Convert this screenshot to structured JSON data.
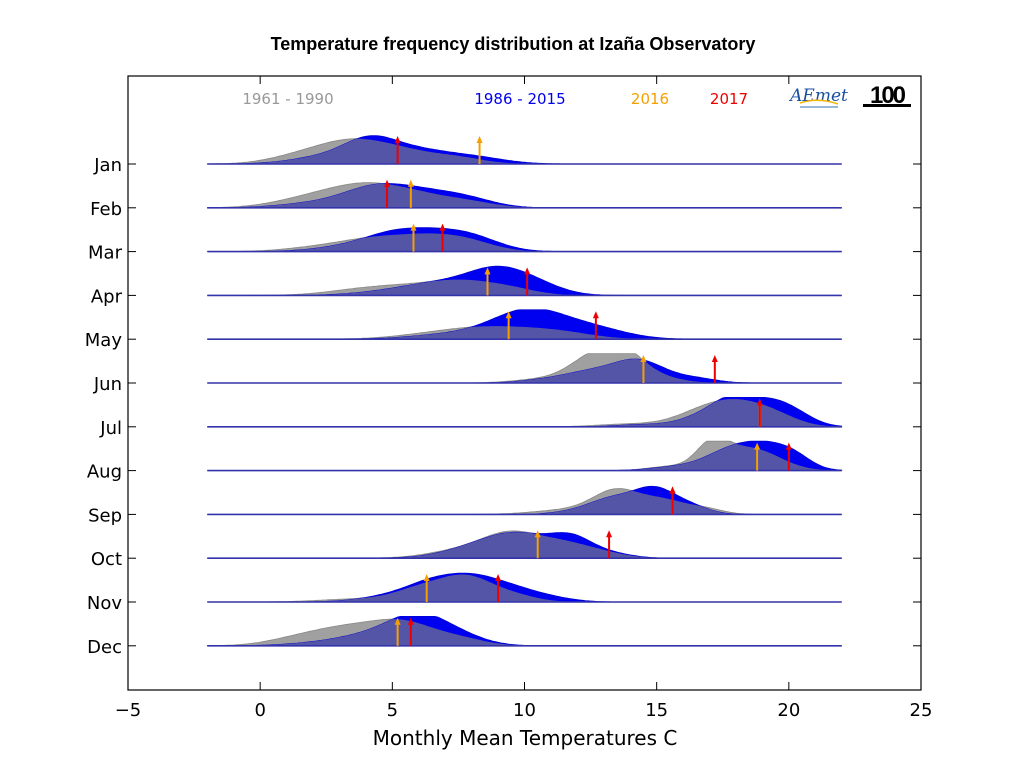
{
  "chart_data": {
    "type": "area",
    "title": "Temperature frequency distribution at Izaña Observatory",
    "xlabel": "Monthly Mean Temperatures C",
    "ylabel": "",
    "xlim": [
      -5,
      25
    ],
    "x_ticks": [
      -5,
      0,
      5,
      10,
      15,
      20,
      25
    ],
    "x_tick_labels": [
      "−5",
      "0",
      "5",
      "10",
      "15",
      "20",
      "25"
    ],
    "categories": [
      "Jan",
      "Feb",
      "Mar",
      "Apr",
      "May",
      "Jun",
      "Jul",
      "Aug",
      "Sep",
      "Oct",
      "Nov",
      "Dec"
    ],
    "baseline_range": [
      -2,
      22
    ],
    "grid": false,
    "legend_position": "top",
    "legend": [
      {
        "label": "1961 - 1990",
        "color": "#999999"
      },
      {
        "label": "1986 - 2015",
        "color": "#0000ee"
      },
      {
        "label": "2016",
        "color": "#f5a000"
      },
      {
        "label": "2017",
        "color": "#ee0000"
      }
    ],
    "logo_text": "AEmet",
    "centenary_text": "100",
    "series": [
      {
        "name": "1961 - 1990",
        "peaks": [
          [
            [
              1.5,
              0.25,
              1.2
            ],
            [
              3.5,
              0.75,
              1.3
            ],
            [
              5.5,
              0.35,
              1.2
            ],
            [
              7.5,
              0.2,
              1.0
            ]
          ],
          [
            [
              2.0,
              0.35,
              1.4
            ],
            [
              4.0,
              0.65,
              1.3
            ],
            [
              6.0,
              0.4,
              1.3
            ],
            [
              8.0,
              0.15,
              1.0
            ]
          ],
          [
            [
              2.0,
              0.12,
              1.2
            ],
            [
              4.2,
              0.4,
              1.3
            ],
            [
              6.5,
              0.5,
              1.3
            ],
            [
              8.0,
              0.2,
              1.0
            ]
          ],
          [
            [
              3.5,
              0.12,
              1.3
            ],
            [
              5.5,
              0.3,
              1.5
            ],
            [
              7.7,
              0.42,
              1.2
            ],
            [
              9.5,
              0.2,
              1.0
            ]
          ],
          [
            [
              6.5,
              0.12,
              1.5
            ],
            [
              9.0,
              0.42,
              1.8
            ],
            [
              11.5,
              0.15,
              1.2
            ]
          ],
          [
            [
              10.5,
              0.12,
              1.0
            ],
            [
              12.5,
              0.8,
              0.9
            ],
            [
              13.7,
              0.95,
              0.8
            ],
            [
              15.0,
              0.2,
              0.9
            ]
          ],
          [
            [
              14.0,
              0.1,
              1.2
            ],
            [
              16.5,
              0.35,
              1.0
            ],
            [
              18.0,
              0.8,
              1.1
            ],
            [
              19.5,
              0.3,
              0.9
            ]
          ],
          [
            [
              15.5,
              0.15,
              0.8
            ],
            [
              17.1,
              0.9,
              0.6
            ],
            [
              18.3,
              0.6,
              0.9
            ],
            [
              19.3,
              0.3,
              0.9
            ]
          ],
          [
            [
              11.5,
              0.15,
              1.2
            ],
            [
              13.5,
              0.85,
              0.9
            ],
            [
              15.3,
              0.45,
              0.8
            ],
            [
              16.8,
              0.2,
              0.7
            ]
          ],
          [
            [
              7.5,
              0.25,
              1.2
            ],
            [
              9.5,
              0.85,
              1.1
            ],
            [
              11.5,
              0.45,
              1.0
            ],
            [
              13.0,
              0.15,
              0.9
            ]
          ],
          [
            [
              3.5,
              0.1,
              1.3
            ],
            [
              6.3,
              0.55,
              1.1
            ],
            [
              7.9,
              0.72,
              0.9
            ],
            [
              9.5,
              0.25,
              0.9
            ]
          ],
          [
            [
              1.5,
              0.25,
              1.2
            ],
            [
              3.5,
              0.6,
              1.3
            ],
            [
              5.5,
              0.7,
              1.1
            ],
            [
              7.5,
              0.25,
              1.0
            ]
          ]
        ]
      },
      {
        "name": "1986 - 2015",
        "peaks": [
          [
            [
              2.5,
              0.25,
              1.3
            ],
            [
              4.2,
              0.8,
              1.0
            ],
            [
              6.0,
              0.4,
              1.1
            ],
            [
              8.0,
              0.25,
              1.2
            ]
          ],
          [
            [
              2.0,
              0.15,
              1.3
            ],
            [
              4.3,
              0.65,
              1.2
            ],
            [
              6.3,
              0.5,
              1.3
            ],
            [
              8.0,
              0.2,
              1.0
            ]
          ],
          [
            [
              3.0,
              0.12,
              1.2
            ],
            [
              5.0,
              0.55,
              1.2
            ],
            [
              7.0,
              0.6,
              1.3
            ],
            [
              8.3,
              0.2,
              1.0
            ]
          ],
          [
            [
              5.0,
              0.12,
              1.4
            ],
            [
              7.0,
              0.4,
              1.4
            ],
            [
              9.0,
              0.8,
              1.1
            ],
            [
              10.5,
              0.3,
              1.0
            ]
          ],
          [
            [
              7.0,
              0.15,
              1.4
            ],
            [
              9.5,
              0.5,
              1.3
            ],
            [
              10.5,
              0.6,
              1.2
            ],
            [
              12.5,
              0.4,
              1.3
            ]
          ],
          [
            [
              10.5,
              0.08,
              0.8
            ],
            [
              12.3,
              0.35,
              1.0
            ],
            [
              14.3,
              0.8,
              1.0
            ],
            [
              16.5,
              0.15,
              0.8
            ]
          ],
          [
            [
              14.5,
              0.08,
              1.0
            ],
            [
              16.8,
              0.35,
              0.9
            ],
            [
              18.0,
              0.9,
              0.8
            ],
            [
              19.5,
              0.75,
              0.8
            ],
            [
              20.5,
              0.2,
              0.7
            ]
          ],
          [
            [
              15.5,
              0.1,
              0.9
            ],
            [
              18.0,
              0.8,
              1.1
            ],
            [
              19.5,
              0.6,
              0.9
            ],
            [
              20.3,
              0.2,
              0.6
            ]
          ],
          [
            [
              12.0,
              0.12,
              0.8
            ],
            [
              13.3,
              0.5,
              0.8
            ],
            [
              14.9,
              0.9,
              0.8
            ],
            [
              16.3,
              0.25,
              0.7
            ]
          ],
          [
            [
              8.0,
              0.3,
              1.2
            ],
            [
              9.8,
              0.8,
              1.2
            ],
            [
              11.8,
              0.65,
              0.8
            ],
            [
              13.3,
              0.15,
              0.8
            ]
          ],
          [
            [
              5.0,
              0.2,
              1.2
            ],
            [
              6.5,
              0.55,
              1.0
            ],
            [
              8.0,
              0.7,
              1.0
            ],
            [
              9.5,
              0.4,
              1.0
            ],
            [
              11.0,
              0.12,
              0.9
            ]
          ],
          [
            [
              2.5,
              0.12,
              1.3
            ],
            [
              4.5,
              0.4,
              1.2
            ],
            [
              6.0,
              0.9,
              1.0
            ],
            [
              7.5,
              0.35,
              1.0
            ]
          ]
        ]
      }
    ],
    "markers": {
      "2016": [
        8.3,
        5.7,
        5.8,
        8.6,
        9.4,
        14.5,
        18.9,
        18.8,
        15.6,
        10.5,
        6.3,
        5.2
      ],
      "2017": [
        5.2,
        4.8,
        6.9,
        10.1,
        12.7,
        17.2,
        18.9,
        20.0,
        15.6,
        13.2,
        9.0,
        5.7
      ]
    }
  }
}
